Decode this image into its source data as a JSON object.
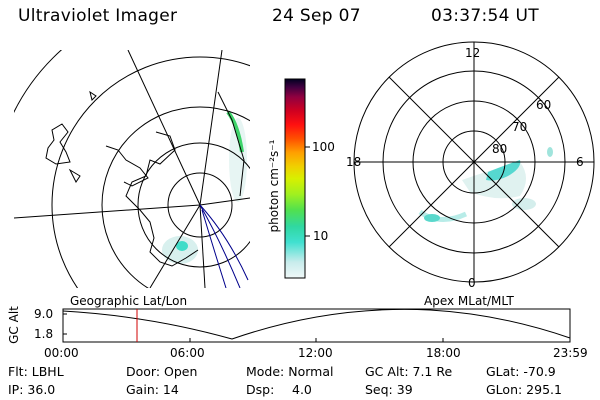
{
  "header": {
    "instrument": "Ultraviolet Imager",
    "date": "24 Sep 07",
    "time": "03:37:54 UT"
  },
  "geo_map": {
    "label": "Geographic Lat/Lon"
  },
  "polar_map": {
    "label": "Apex MLat/MLT",
    "mlt_ticks": [
      "12",
      "18",
      "6",
      "0"
    ],
    "lat_ticks": [
      "60",
      "70",
      "80"
    ]
  },
  "colorbar": {
    "unit_label": "photon cm⁻²s⁻¹",
    "ticks": [
      "100",
      "10"
    ],
    "scale": "log",
    "colors": [
      "#e8f4f4",
      "#c0e8e8",
      "#40e0d0",
      "#30d0a0",
      "#50e050",
      "#a0f020",
      "#d0f000",
      "#f0d000",
      "#ffa000",
      "#ff6000",
      "#ff2000",
      "#e00010",
      "#c00030",
      "#800040",
      "#400040",
      "#000020"
    ]
  },
  "altitude_plot": {
    "ylabel": "GC Alt",
    "y_ticks": [
      "9.0",
      "1.8"
    ],
    "x_ticks": [
      "00:00",
      "06:00",
      "12:00",
      "18:00",
      "23:59"
    ],
    "marker_color": "#d00000"
  },
  "info": {
    "flt": "Flt: LBHL",
    "ip": "IP: 36.0",
    "door": "Door: Open",
    "gain": "Gain: 14",
    "mode": "Mode: Normal",
    "dsp_label": "Dsp:",
    "dsp_value": "4.0",
    "gc_alt": "GC Alt: 7.1 Re",
    "seq": "Seq: 39",
    "glat": "GLat: -70.9",
    "glon": "GLon: 295.1"
  }
}
